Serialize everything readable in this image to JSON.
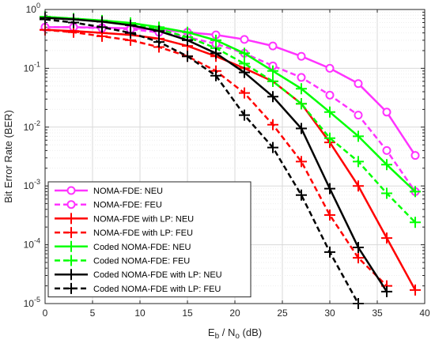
{
  "chart_data": {
    "type": "line",
    "title": "",
    "xlabel": {
      "main": "E",
      "sub1": "b",
      "mid": " / N",
      "sub2": "o",
      "tail": " (dB)"
    },
    "ylabel": "Bit Error Rate (BER)",
    "xlim": [
      0,
      40
    ],
    "ylim": [
      1e-05,
      1
    ],
    "yscale": "log",
    "grid": true,
    "legend_position": "bottom-left",
    "x_ticks": [
      "0",
      "5",
      "10",
      "15",
      "20",
      "25",
      "30",
      "35",
      "40"
    ],
    "y_ticks": [
      {
        "base": "10",
        "exp": "0"
      },
      {
        "base": "10",
        "exp": "-1"
      },
      {
        "base": "10",
        "exp": "-2"
      },
      {
        "base": "10",
        "exp": "-3"
      },
      {
        "base": "10",
        "exp": "-4"
      },
      {
        "base": "10",
        "exp": "-5"
      }
    ],
    "series": [
      {
        "name": "NOMA-FDE: NEU",
        "color": "#ff33ff",
        "dash": "solid",
        "marker": "circle",
        "x": [
          0,
          3,
          6,
          9,
          12,
          15,
          18,
          21,
          24,
          27,
          30,
          33,
          36,
          39
        ],
        "y": [
          0.5,
          0.5,
          0.49,
          0.48,
          0.45,
          0.41,
          0.37,
          0.31,
          0.24,
          0.16,
          0.1,
          0.055,
          0.018,
          0.0033
        ]
      },
      {
        "name": "NOMA-FDE: FEU",
        "color": "#ff33ff",
        "dash": "dashed",
        "marker": "circle",
        "x": [
          0,
          3,
          6,
          9,
          12,
          15,
          18,
          21,
          24,
          27,
          30,
          33,
          36,
          39
        ],
        "y": [
          0.5,
          0.5,
          0.48,
          0.46,
          0.41,
          0.34,
          0.26,
          0.18,
          0.11,
          0.07,
          0.035,
          0.016,
          0.004,
          0.0008
        ]
      },
      {
        "name": "NOMA-FDE with LP: NEU",
        "color": "#ff0000",
        "dash": "solid",
        "marker": "plus",
        "x": [
          0,
          3,
          6,
          9,
          12,
          15,
          18,
          21,
          24,
          27,
          30,
          33,
          36,
          39
        ],
        "y": [
          0.45,
          0.43,
          0.4,
          0.37,
          0.32,
          0.24,
          0.16,
          0.1,
          0.06,
          0.025,
          0.0055,
          0.001,
          0.00013,
          1.7e-05
        ]
      },
      {
        "name": "NOMA-FDE with LP: FEU",
        "color": "#ff0000",
        "dash": "dashed",
        "marker": "plus",
        "x": [
          0,
          3,
          6,
          9,
          12,
          15,
          18,
          21,
          24,
          27,
          30,
          33,
          36
        ],
        "y": [
          0.45,
          0.41,
          0.35,
          0.3,
          0.23,
          0.16,
          0.09,
          0.038,
          0.011,
          0.0026,
          0.00032,
          6e-05,
          2e-05
        ]
      },
      {
        "name": "Coded NOMA-FDE: NEU",
        "color": "#00ff00",
        "dash": "solid",
        "marker": "plus",
        "x": [
          0,
          3,
          6,
          9,
          12,
          15,
          18,
          21,
          24,
          27,
          30,
          33,
          36,
          39
        ],
        "y": [
          0.75,
          0.7,
          0.65,
          0.59,
          0.5,
          0.41,
          0.3,
          0.18,
          0.09,
          0.045,
          0.018,
          0.007,
          0.0023,
          0.0008
        ]
      },
      {
        "name": "Coded NOMA-FDE: FEU",
        "color": "#00ff00",
        "dash": "dashed",
        "marker": "plus",
        "x": [
          0,
          3,
          6,
          9,
          12,
          15,
          18,
          21,
          24,
          27,
          30,
          33,
          36,
          39
        ],
        "y": [
          0.75,
          0.7,
          0.64,
          0.56,
          0.46,
          0.34,
          0.22,
          0.12,
          0.06,
          0.025,
          0.0065,
          0.0026,
          0.00075,
          0.00024
        ]
      },
      {
        "name": "Coded NOMA-FDE with LP: NEU",
        "color": "#000000",
        "dash": "solid",
        "marker": "plus",
        "x": [
          0,
          3,
          6,
          9,
          12,
          15,
          18,
          21,
          24,
          27,
          30,
          33,
          36
        ],
        "y": [
          0.72,
          0.68,
          0.62,
          0.54,
          0.43,
          0.3,
          0.18,
          0.085,
          0.033,
          0.0095,
          0.0009,
          9e-05,
          1.6e-05
        ]
      },
      {
        "name": "Coded NOMA-FDE with LP: FEU",
        "color": "#000000",
        "dash": "dashed",
        "marker": "plus",
        "x": [
          0,
          3,
          6,
          9,
          12,
          15,
          18,
          21,
          24,
          27,
          30,
          33
        ],
        "y": [
          0.68,
          0.6,
          0.5,
          0.4,
          0.28,
          0.16,
          0.075,
          0.016,
          0.0045,
          0.0007,
          7.5e-05,
          1e-05
        ]
      }
    ]
  }
}
